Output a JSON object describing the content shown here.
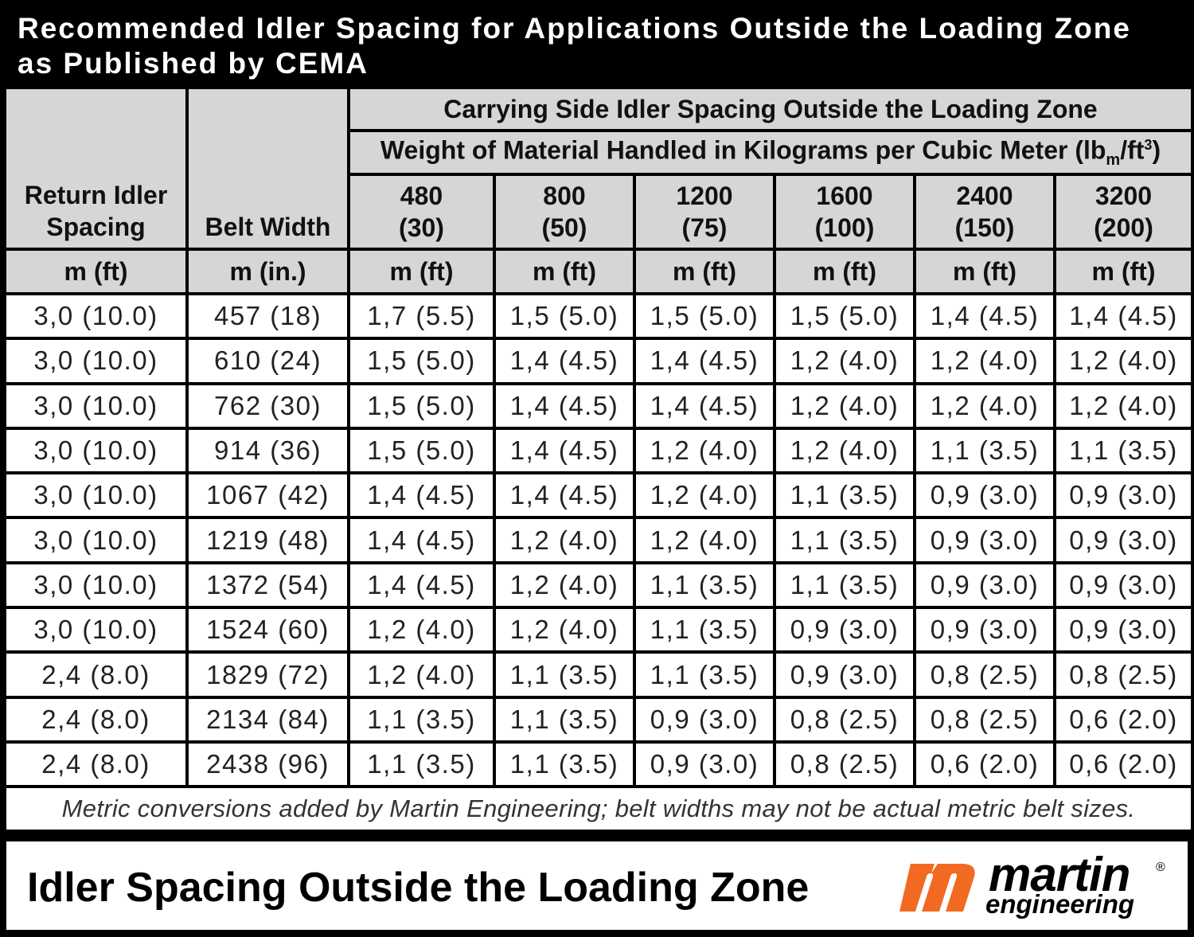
{
  "title": {
    "line1": "Recommended Idler Spacing for Applications Outside the Loading Zone",
    "line2": "as Published by CEMA"
  },
  "table": {
    "col_return": "Return Idler Spacing",
    "col_return_line1": "Return Idler",
    "col_return_line2": "Spacing",
    "col_belt": "Belt Width",
    "group_header": "Carrying Side Idler Spacing Outside the Loading Zone",
    "subgroup_header": {
      "prefix": "Weight of Material Handled in Kilograms per Cubic Meter (lb",
      "sub": "m",
      "mid": "/ft",
      "sup": "3",
      "suffix": ")"
    },
    "weights": [
      {
        "kg": "480",
        "lb": "(30)"
      },
      {
        "kg": "800",
        "lb": "(50)"
      },
      {
        "kg": "1200",
        "lb": "(75)"
      },
      {
        "kg": "1600",
        "lb": "(100)"
      },
      {
        "kg": "2400",
        "lb": "(150)"
      },
      {
        "kg": "3200",
        "lb": "(200)"
      }
    ],
    "units": [
      "m (ft)",
      "m (in.)",
      "m (ft)",
      "m (ft)",
      "m (ft)",
      "m (ft)",
      "m (ft)",
      "m (ft)"
    ],
    "rows": [
      [
        "3,0 (10.0)",
        "457 (18)",
        "1,7 (5.5)",
        "1,5 (5.0)",
        "1,5 (5.0)",
        "1,5 (5.0)",
        "1,4 (4.5)",
        "1,4 (4.5)"
      ],
      [
        "3,0 (10.0)",
        "610 (24)",
        "1,5 (5.0)",
        "1,4 (4.5)",
        "1,4 (4.5)",
        "1,2 (4.0)",
        "1,2 (4.0)",
        "1,2 (4.0)"
      ],
      [
        "3,0 (10.0)",
        "762 (30)",
        "1,5 (5.0)",
        "1,4 (4.5)",
        "1,4 (4.5)",
        "1,2 (4.0)",
        "1,2 (4.0)",
        "1,2 (4.0)"
      ],
      [
        "3,0 (10.0)",
        "914 (36)",
        "1,5 (5.0)",
        "1,4 (4.5)",
        "1,2 (4.0)",
        "1,2 (4.0)",
        "1,1 (3.5)",
        "1,1 (3.5)"
      ],
      [
        "3,0 (10.0)",
        "1067 (42)",
        "1,4 (4.5)",
        "1,4 (4.5)",
        "1,2 (4.0)",
        "1,1 (3.5)",
        "0,9 (3.0)",
        "0,9 (3.0)"
      ],
      [
        "3,0 (10.0)",
        "1219 (48)",
        "1,4 (4.5)",
        "1,2 (4.0)",
        "1,2 (4.0)",
        "1,1 (3.5)",
        "0,9 (3.0)",
        "0,9 (3.0)"
      ],
      [
        "3,0 (10.0)",
        "1372 (54)",
        "1,4 (4.5)",
        "1,2 (4.0)",
        "1,1 (3.5)",
        "1,1 (3.5)",
        "0,9 (3.0)",
        "0,9 (3.0)"
      ],
      [
        "3,0 (10.0)",
        "1524 (60)",
        "1,2 (4.0)",
        "1,2 (4.0)",
        "1,1 (3.5)",
        "0,9 (3.0)",
        "0,9 (3.0)",
        "0,9 (3.0)"
      ],
      [
        "2,4 (8.0)",
        "1829 (72)",
        "1,2 (4.0)",
        "1,1 (3.5)",
        "1,1 (3.5)",
        "0,9 (3.0)",
        "0,8 (2.5)",
        "0,8 (2.5)"
      ],
      [
        "2,4 (8.0)",
        "2134 (84)",
        "1,1 (3.5)",
        "1,1 (3.5)",
        "0,9 (3.0)",
        "0,8 (2.5)",
        "0,8 (2.5)",
        "0,6 (2.0)"
      ],
      [
        "2,4 (8.0)",
        "2438 (96)",
        "1,1 (3.5)",
        "1,1 (3.5)",
        "0,9 (3.0)",
        "0,8 (2.5)",
        "0,6 (2.0)",
        "0,6 (2.0)"
      ]
    ],
    "note": "Metric conversions added by Martin Engineering; belt widths may not be actual metric belt sizes."
  },
  "footer": {
    "title": "Idler Spacing Outside the Loading Zone",
    "logo_word": "martin",
    "logo_sub": "engineering",
    "logo_reg": "®"
  },
  "colors": {
    "background": "#000000",
    "header_fill": "#d6d6d6",
    "cell_fill": "#ffffff",
    "logo_orange": "#f26a21"
  }
}
